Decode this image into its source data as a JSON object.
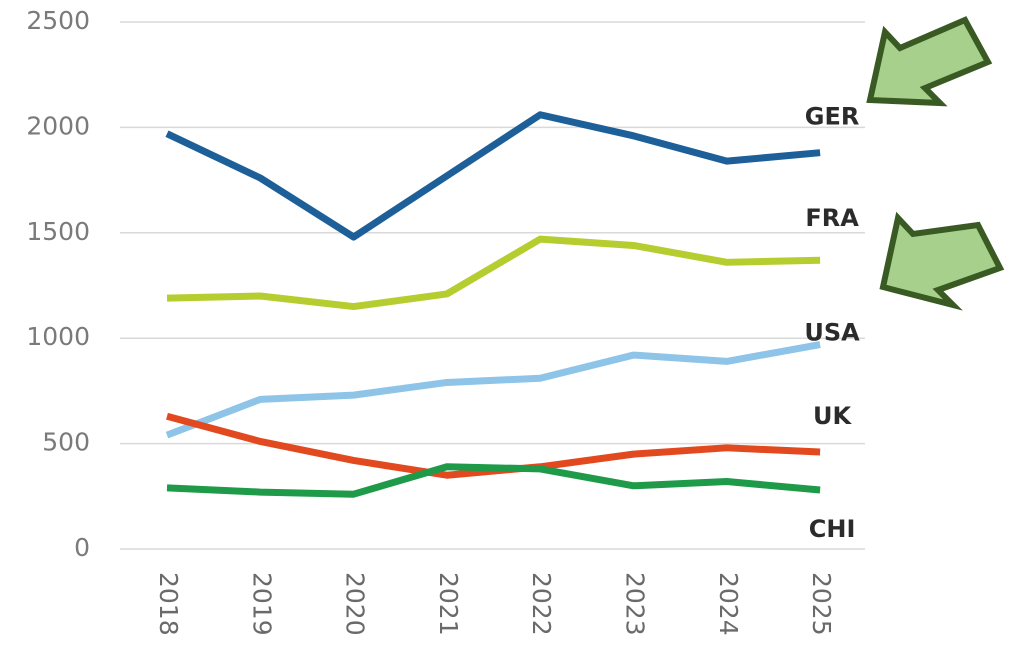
{
  "chart_data": {
    "type": "line",
    "categories": [
      "2018",
      "2019",
      "2020",
      "2021",
      "2022",
      "2023",
      "2024",
      "2025"
    ],
    "series": [
      {
        "name": "GER",
        "color": "#1d5f98",
        "values": [
          1970,
          1760,
          1480,
          1770,
          2060,
          1960,
          1840,
          1880
        ]
      },
      {
        "name": "FRA",
        "color": "#b6cd2f",
        "values": [
          1190,
          1200,
          1150,
          1210,
          1470,
          1440,
          1360,
          1370
        ]
      },
      {
        "name": "USA",
        "color": "#8ec4e8",
        "values": [
          540,
          710,
          730,
          790,
          810,
          920,
          890,
          970
        ]
      },
      {
        "name": "UK",
        "color": "#e2491f",
        "values": [
          630,
          510,
          420,
          350,
          390,
          450,
          480,
          460
        ]
      },
      {
        "name": "CHI",
        "color": "#1e9a48",
        "values": [
          290,
          270,
          260,
          390,
          380,
          300,
          320,
          280
        ]
      }
    ],
    "ylim": [
      0,
      2500
    ],
    "yticks": [
      0,
      500,
      1000,
      1500,
      2000,
      2500
    ],
    "grid": true
  }
}
